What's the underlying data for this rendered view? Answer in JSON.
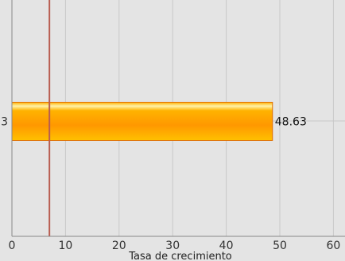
{
  "chart_data": {
    "type": "bar",
    "orientation": "horizontal",
    "categories": [
      "3"
    ],
    "values": [
      48.63
    ],
    "data_labels": [
      "48.63"
    ],
    "xlabel": "Tasa de crecimiento",
    "ylabel": "",
    "xlim": [
      0,
      62
    ],
    "x_ticks": [
      0,
      10,
      20,
      30,
      40,
      50,
      60
    ],
    "reference_line": {
      "x": 7
    },
    "grid": true,
    "colors": {
      "background": "#e4e4e4",
      "grid": "#c8c8c8",
      "bar_top": "#fff2a8",
      "bar_main": "#ffa500",
      "bar_bottom": "#ff7f00",
      "bar_stroke": "#e07000",
      "reference_line": "#b85c50",
      "axis": "#888888"
    }
  }
}
